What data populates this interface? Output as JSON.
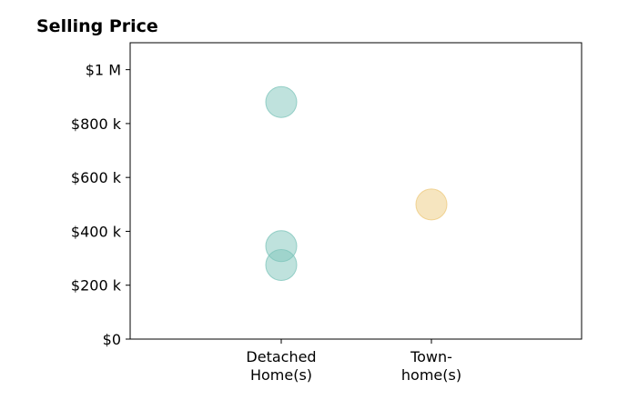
{
  "chart_data": {
    "type": "scatter",
    "title": "Selling Price",
    "xlabel": "",
    "ylabel": "",
    "categories": [
      [
        "Detached",
        "Home(s)"
      ],
      [
        "Town-",
        "home(s)"
      ]
    ],
    "ylim": [
      0,
      1100000
    ],
    "yticks": [
      {
        "value": 0,
        "label": "$0"
      },
      {
        "value": 200000,
        "label": "$200 k"
      },
      {
        "value": 400000,
        "label": "$400 k"
      },
      {
        "value": 600000,
        "label": "$600 k"
      },
      {
        "value": 800000,
        "label": "$800 k"
      },
      {
        "value": 1000000,
        "label": "$1 M"
      }
    ],
    "grid": false,
    "series": [
      {
        "color": "#7fc6bc",
        "points": [
          {
            "category": 0,
            "value": 880000
          },
          {
            "category": 0,
            "value": 345000
          },
          {
            "category": 0,
            "value": 275000
          }
        ]
      },
      {
        "color": "#eecb7f",
        "points": [
          {
            "category": 1,
            "value": 500000
          }
        ]
      }
    ],
    "point_opacity": 0.5
  }
}
